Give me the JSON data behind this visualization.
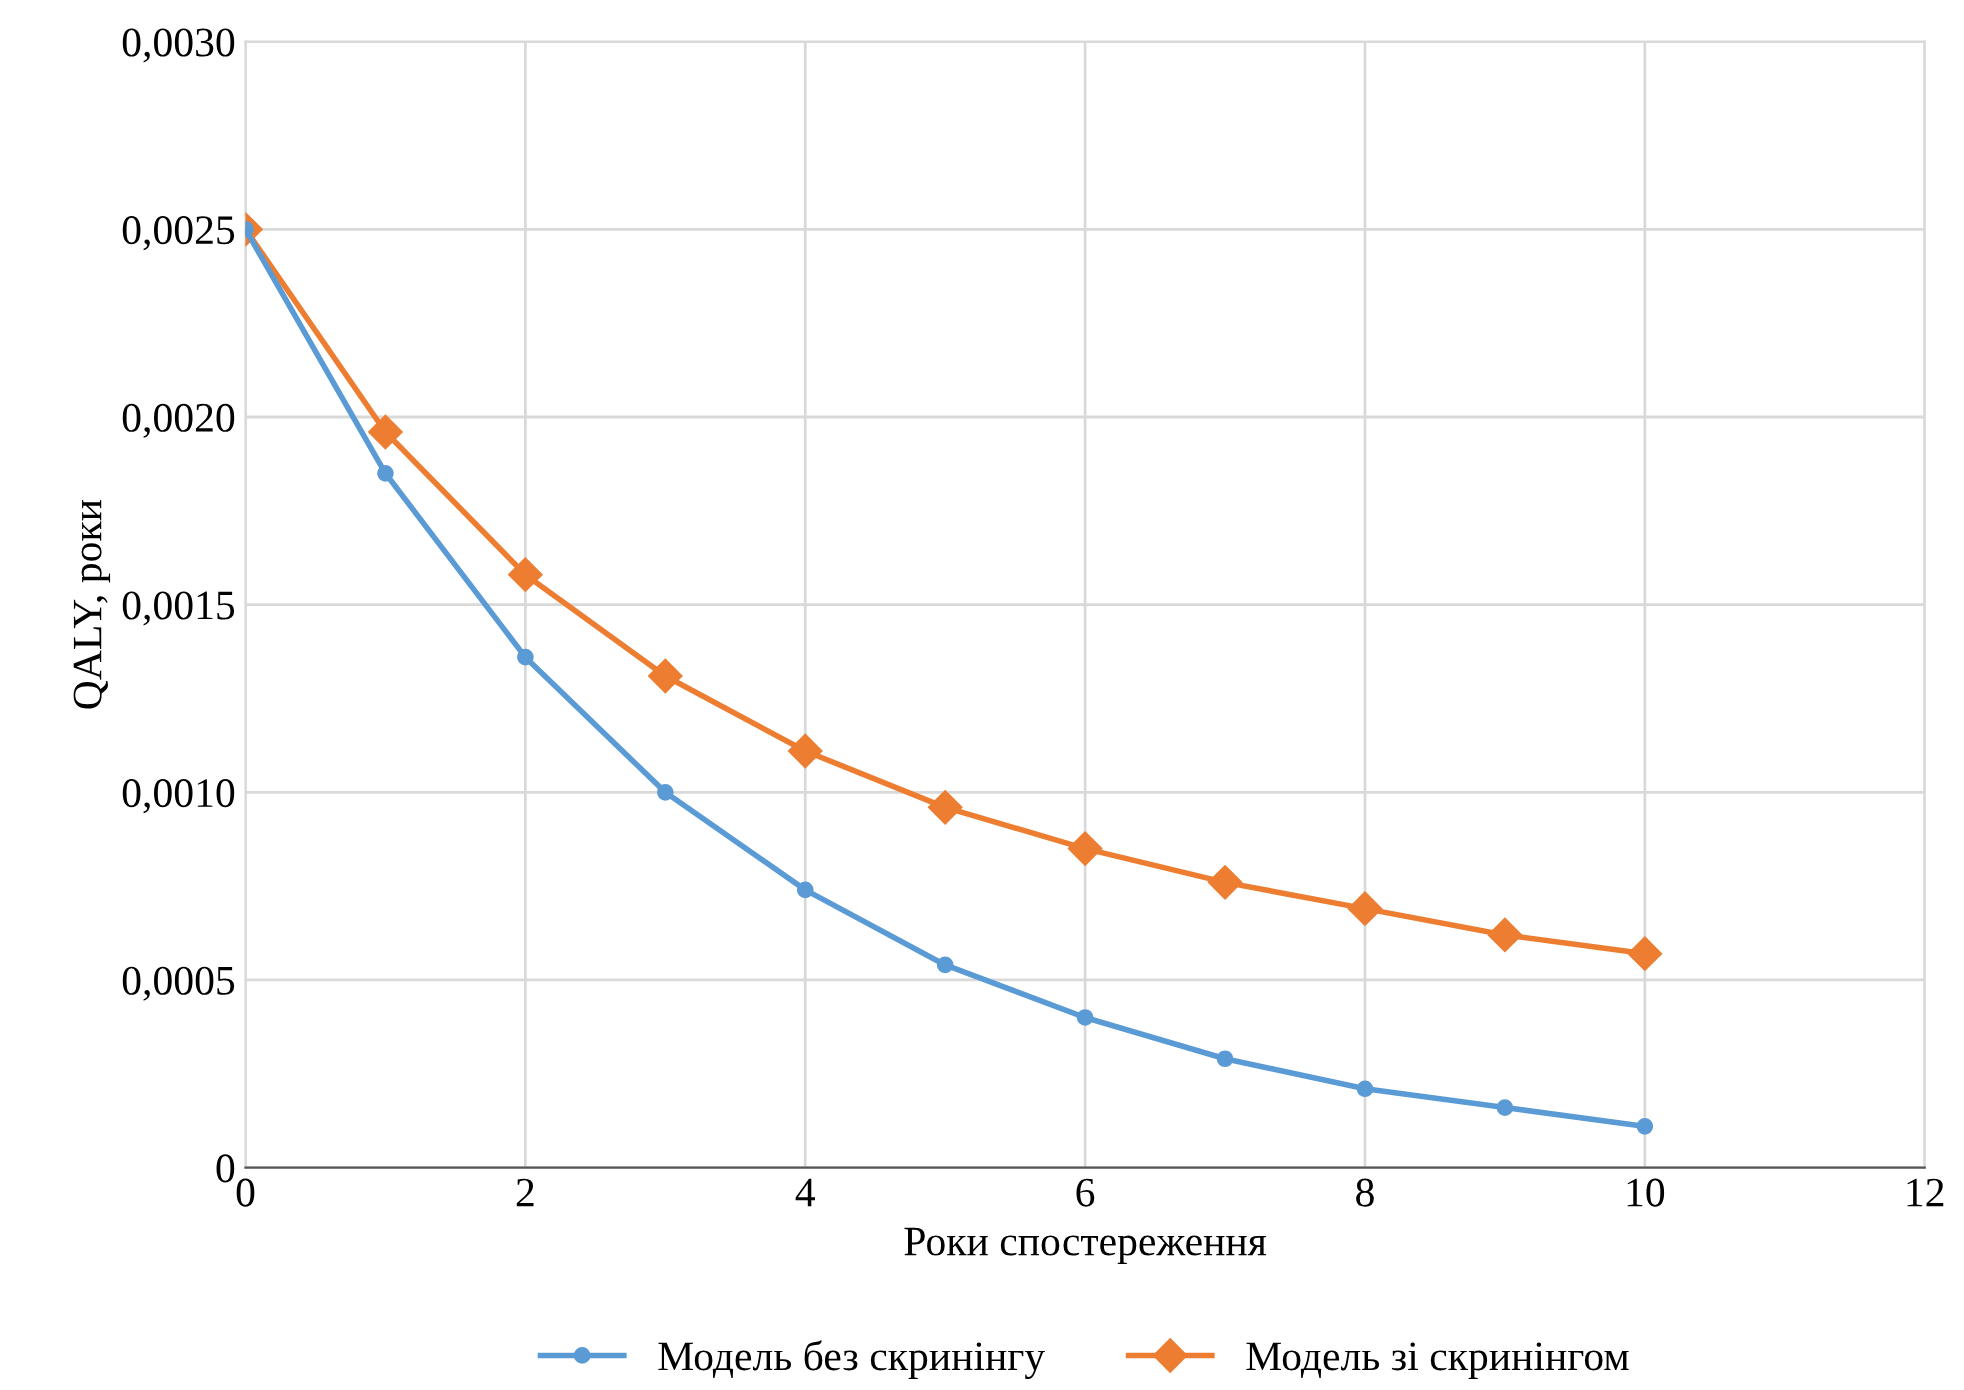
{
  "chart_data": {
    "type": "line",
    "xlabel": "Роки спостереження",
    "ylabel": "QALY, роки",
    "x": [
      0,
      1,
      2,
      3,
      4,
      5,
      6,
      7,
      8,
      9,
      10
    ],
    "series": [
      {
        "name": "Модель без скринінгу",
        "color": "#5b9bd5",
        "marker": "circle",
        "values": [
          0.0025,
          0.00185,
          0.00136,
          0.001,
          0.00074,
          0.00054,
          0.0004,
          0.00029,
          0.00021,
          0.00016,
          0.00011
        ]
      },
      {
        "name": "Модель зі скринінгом",
        "color": "#ed7d31",
        "marker": "diamond",
        "values": [
          0.0025,
          0.00196,
          0.00158,
          0.00131,
          0.00111,
          0.00096,
          0.00085,
          0.00076,
          0.00069,
          0.00062,
          0.00057
        ]
      }
    ],
    "xlim": [
      0,
      12
    ],
    "xticks": [
      0,
      2,
      4,
      6,
      8,
      10,
      12
    ],
    "ylim": [
      0,
      0.003
    ],
    "yticks": [
      {
        "value": 0,
        "label": "0"
      },
      {
        "value": 0.0005,
        "label": "0,0005"
      },
      {
        "value": 0.001,
        "label": "0,0010"
      },
      {
        "value": 0.0015,
        "label": "0,0015"
      },
      {
        "value": 0.002,
        "label": "0,0020"
      },
      {
        "value": 0.0025,
        "label": "0,0025"
      },
      {
        "value": 0.003,
        "label": "0,0030"
      }
    ],
    "grid": true,
    "legend": "bottom",
    "line_style": "solid"
  }
}
